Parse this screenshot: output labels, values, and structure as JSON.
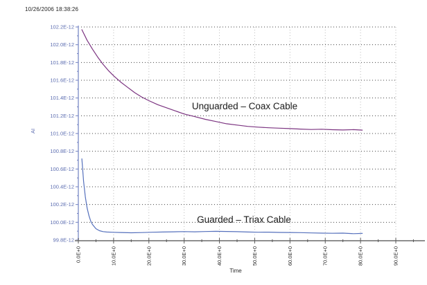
{
  "timestamp": "10/26/2006 18:38:26",
  "colors": {
    "background": "#ffffff",
    "horizontal_grid": "#3f3f3f",
    "vertical_grid": "#bcbcbc",
    "y_axis": "#a9b3da",
    "y_tick": "#6f7ec0",
    "y_label_text": "#5b6cb0",
    "x_axis": "#8e8e8e",
    "x_tick": "#5a5a5a",
    "x_label_text": "#2a2a2a",
    "annotation_text": "#1a1a1a",
    "timestamp_text": "#222222",
    "unguarded_line": "#7b3380",
    "guarded_line": "#5570bc"
  },
  "chart_data": {
    "type": "line",
    "title": "",
    "xlabel": "Time",
    "ylabel": "AI",
    "grid": true,
    "legend_position": "inline-annotations",
    "x_range": [
      0,
      90
    ],
    "y_range_e12": [
      99.8,
      102.2
    ],
    "x_tick_labels": [
      "0.0E+0",
      "10.0E+0",
      "20.0E+0",
      "30.0E+0",
      "40.0E+0",
      "50.0E+0",
      "60.0E+0",
      "70.0E+0",
      "80.0E+0",
      "90.0E+0"
    ],
    "x_tick_values": [
      0,
      10,
      20,
      30,
      40,
      50,
      60,
      70,
      80,
      90
    ],
    "x_minor_tick_values": [
      5,
      15,
      25,
      35,
      45,
      55,
      65,
      75,
      85,
      95
    ],
    "y_tick_labels": [
      "102.2E-12",
      "102.0E-12",
      "101.8E-12",
      "101.6E-12",
      "101.4E-12",
      "101.2E-12",
      "101.0E-12",
      "100.8E-12",
      "100.6E-12",
      "100.4E-12",
      "100.2E-12",
      "100.0E-12",
      "99.8E-12"
    ],
    "y_tick_values": [
      102.2,
      102.0,
      101.8,
      101.6,
      101.4,
      101.2,
      101.0,
      100.8,
      100.6,
      100.4,
      100.2,
      100.0,
      99.8
    ],
    "y_minor_tick_values": [
      102.1,
      101.9,
      101.7,
      101.5,
      101.3,
      101.1,
      100.9,
      100.7,
      100.5,
      100.3,
      100.1,
      99.9
    ],
    "y_unit": "E-12",
    "series": [
      {
        "name": "Unguarded – Coax Cable",
        "color": "#7b3380",
        "x": [
          1,
          2.5,
          4,
          5.5,
          7,
          8.5,
          10,
          12,
          14,
          16,
          18,
          20,
          22.5,
          25,
          27.5,
          30,
          33,
          36,
          39,
          42,
          45,
          48,
          51,
          54,
          57,
          60,
          63,
          66,
          69,
          72,
          75,
          78,
          80.5
        ],
        "y_e12": [
          102.17,
          102.05,
          101.95,
          101.86,
          101.78,
          101.71,
          101.65,
          101.58,
          101.52,
          101.46,
          101.41,
          101.37,
          101.325,
          101.29,
          101.255,
          101.22,
          101.19,
          101.16,
          101.135,
          101.11,
          101.095,
          101.08,
          101.072,
          101.065,
          101.06,
          101.055,
          101.05,
          101.045,
          101.048,
          101.043,
          101.04,
          101.044,
          101.038
        ]
      },
      {
        "name": "Guarded – Triax Cable",
        "color": "#5570bc",
        "x": [
          1,
          1.5,
          2,
          2.5,
          3,
          3.5,
          4,
          5,
          6,
          7,
          8,
          10,
          12,
          15,
          18,
          21,
          24,
          27,
          30,
          33,
          36,
          39,
          42,
          45,
          48,
          51,
          54,
          57,
          60,
          63,
          66,
          69,
          72,
          75,
          78,
          80.5
        ],
        "y_e12": [
          100.715,
          100.46,
          100.28,
          100.16,
          100.075,
          100.015,
          99.975,
          99.928,
          99.905,
          99.895,
          99.89,
          99.887,
          99.885,
          99.882,
          99.884,
          99.888,
          99.89,
          99.893,
          99.895,
          99.893,
          99.896,
          99.898,
          99.897,
          99.894,
          99.89,
          99.888,
          99.889,
          99.886,
          99.885,
          99.883,
          99.88,
          99.878,
          99.876,
          99.878,
          99.872,
          99.875
        ]
      }
    ]
  }
}
